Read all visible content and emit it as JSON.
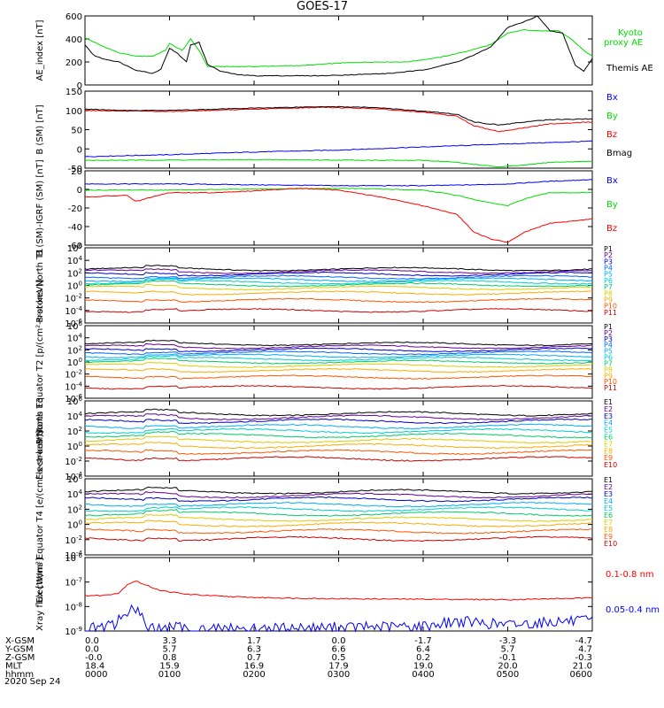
{
  "title": "GOES-17",
  "chart_data": [
    {
      "type": "line",
      "ylabel": "AE_index [nT]",
      "ylim": [
        0,
        600
      ],
      "yticks": [
        "600",
        "400",
        "200",
        "0"
      ],
      "series": [
        {
          "name": "Kyoto proxy AE",
          "color": "#00dd00",
          "x": [
            0,
            0.2,
            0.4,
            0.6,
            0.8,
            0.95,
            1.0,
            1.15,
            1.25,
            1.35,
            1.45,
            1.6,
            1.8,
            2.0,
            2.3,
            2.6,
            3.0,
            3.4,
            3.8,
            4.2,
            4.5,
            4.8,
            5.0,
            5.2,
            5.4,
            5.6,
            5.75,
            5.9,
            6.0
          ],
          "y": [
            410,
            340,
            280,
            250,
            250,
            300,
            360,
            300,
            400,
            300,
            160,
            160,
            160,
            160,
            165,
            170,
            190,
            200,
            200,
            240,
            290,
            350,
            450,
            480,
            470,
            470,
            400,
            300,
            250
          ]
        },
        {
          "name": "Themis AE",
          "color": "#000000",
          "x": [
            0,
            0.1,
            0.2,
            0.4,
            0.6,
            0.8,
            0.9,
            1.0,
            1.1,
            1.2,
            1.25,
            1.35,
            1.45,
            1.6,
            1.8,
            2.0,
            2.4,
            2.8,
            3.2,
            3.6,
            4.0,
            4.4,
            4.6,
            4.8,
            5.0,
            5.2,
            5.35,
            5.5,
            5.65,
            5.8,
            5.9,
            6.0
          ],
          "y": [
            350,
            260,
            230,
            200,
            130,
            100,
            140,
            320,
            270,
            200,
            350,
            370,
            180,
            120,
            90,
            80,
            80,
            80,
            90,
            100,
            130,
            200,
            260,
            330,
            500,
            550,
            600,
            470,
            450,
            170,
            120,
            230
          ]
        }
      ]
    },
    {
      "type": "line",
      "ylabel": "B (SM) [nT]",
      "ylim": [
        -50,
        150
      ],
      "yticks": [
        "150",
        "100",
        "50",
        "0",
        "-50"
      ],
      "series": [
        {
          "name": "Bx",
          "color": "#0000ff",
          "x": [
            0,
            1,
            2,
            3,
            4,
            5,
            6
          ],
          "y": [
            -20,
            -15,
            -8,
            -3,
            5,
            13,
            20
          ]
        },
        {
          "name": "By",
          "color": "#00dd00",
          "x": [
            0,
            1,
            2,
            3,
            4,
            4.3,
            4.6,
            4.9,
            5.2,
            5.5,
            6
          ],
          "y": [
            -30,
            -29,
            -28,
            -29,
            -30,
            -33,
            -40,
            -47,
            -42,
            -35,
            -32
          ]
        },
        {
          "name": "Bz",
          "color": "#ff0000",
          "x": [
            0,
            0.5,
            1,
            2,
            2.8,
            3.4,
            4,
            4.4,
            4.6,
            4.9,
            5.2,
            5.5,
            6
          ],
          "y": [
            100,
            98,
            97,
            103,
            108,
            105,
            95,
            85,
            60,
            45,
            55,
            65,
            70
          ]
        },
        {
          "name": "Bmag",
          "color": "#000000",
          "x": [
            0,
            0.5,
            1,
            2,
            2.8,
            3.4,
            4,
            4.4,
            4.6,
            4.9,
            5.2,
            5.5,
            6
          ],
          "y": [
            103,
            100,
            100,
            106,
            110,
            108,
            98,
            90,
            70,
            62,
            70,
            76,
            78
          ]
        }
      ]
    },
    {
      "type": "line",
      "ylabel": "B (SM)-IGRF (SM) [nT]",
      "ylim": [
        -65,
        20
      ],
      "yticks": [
        "20",
        "0",
        "-20",
        "-40",
        "-60"
      ],
      "series": [
        {
          "name": "Bx",
          "color": "#0000ff",
          "x": [
            0,
            1,
            2,
            3,
            4,
            4.6,
            5,
            5.5,
            6
          ],
          "y": [
            5,
            5,
            4,
            3,
            3,
            4,
            5,
            8,
            10
          ]
        },
        {
          "name": "By",
          "color": "#00dd00",
          "x": [
            0,
            1,
            2,
            3,
            4,
            4.4,
            4.7,
            5,
            5.2,
            5.5,
            6
          ],
          "y": [
            -2,
            -2,
            -1,
            0,
            -2,
            -8,
            -15,
            -20,
            -12,
            -5,
            -5
          ]
        },
        {
          "name": "Bz",
          "color": "#ff0000",
          "x": [
            0,
            0.5,
            0.6,
            1,
            1.5,
            2,
            2.5,
            3,
            3.5,
            4,
            4.4,
            4.6,
            4.8,
            5.0,
            5.2,
            5.5,
            6
          ],
          "y": [
            -10,
            -8,
            -15,
            -5,
            -5,
            -3,
            0,
            -2,
            -10,
            -20,
            -30,
            -50,
            -58,
            -62,
            -50,
            -40,
            -35
          ]
        }
      ]
    },
    {
      "type": "line",
      "ylabel": "Protons North T1",
      "ylog": true,
      "ylim": [
        -6,
        6
      ],
      "yticks": [
        "10^6",
        "10^4",
        "10^2",
        "10^0",
        "10^-2",
        "10^-4",
        "10^-6"
      ],
      "series": [
        {
          "name": "P1",
          "color": "#000000",
          "y": 2.6
        },
        {
          "name": "P2",
          "color": "#660099",
          "y": 2.2
        },
        {
          "name": "P3",
          "color": "#0000cc",
          "y": 1.8
        },
        {
          "name": "P4",
          "color": "#0066ff",
          "y": 1.3
        },
        {
          "name": "P5",
          "color": "#00aaff",
          "y": 0.9
        },
        {
          "name": "P6",
          "color": "#00cccc",
          "y": 0.5
        },
        {
          "name": "P7",
          "color": "#00cc66",
          "y": 0.1
        },
        {
          "name": "P8",
          "color": "#ddcc00",
          "y": -0.4
        },
        {
          "name": "P9",
          "color": "#ffaa00",
          "y": -1.2
        },
        {
          "name": "P10",
          "color": "#ff5500",
          "y": -2.4
        },
        {
          "name": "P11",
          "color": "#cc0000",
          "y": -4.0
        }
      ]
    },
    {
      "type": "line",
      "ylabel": "Protons Equator T2 [p/(cm²-s-sr-keV)]",
      "ylog": true,
      "ylim": [
        -6,
        6
      ],
      "yticks": [
        "10^6",
        "10^4",
        "10^2",
        "10^0",
        "10^-2",
        "10^-4",
        "10^-6"
      ],
      "series": [
        {
          "name": "P1",
          "color": "#000000",
          "y": 3.0
        },
        {
          "name": "P2",
          "color": "#660099",
          "y": 2.5
        },
        {
          "name": "P3",
          "color": "#0000cc",
          "y": 2.0
        },
        {
          "name": "P4",
          "color": "#0066ff",
          "y": 1.5
        },
        {
          "name": "P5",
          "color": "#00aaff",
          "y": 1.0
        },
        {
          "name": "P6",
          "color": "#00cccc",
          "y": 0.5
        },
        {
          "name": "P7",
          "color": "#00cc66",
          "y": 0.0
        },
        {
          "name": "P8",
          "color": "#ddcc00",
          "y": -0.6
        },
        {
          "name": "P9",
          "color": "#ffaa00",
          "y": -1.4
        },
        {
          "name": "P10",
          "color": "#ff5500",
          "y": -2.5
        },
        {
          "name": "P11",
          "color": "#cc0000",
          "y": -4.2
        }
      ]
    },
    {
      "type": "line",
      "ylabel": "Electrons North T3",
      "ylog": true,
      "ylim": [
        -4,
        6
      ],
      "yticks": [
        "10^6",
        "10^4",
        "10^2",
        "10^0",
        "10^-2",
        "10^-4"
      ],
      "series": [
        {
          "name": "E1",
          "color": "#000000",
          "y": 4.3
        },
        {
          "name": "E2",
          "color": "#660099",
          "y": 3.8
        },
        {
          "name": "E3",
          "color": "#0000cc",
          "y": 3.3
        },
        {
          "name": "E4",
          "color": "#00aaff",
          "y": 2.6
        },
        {
          "name": "E5",
          "color": "#00cccc",
          "y": 2.0
        },
        {
          "name": "E6",
          "color": "#00cc66",
          "y": 1.4
        },
        {
          "name": "E7",
          "color": "#ddcc00",
          "y": 0.7
        },
        {
          "name": "E8",
          "color": "#ffaa00",
          "y": 0.0
        },
        {
          "name": "E9",
          "color": "#ff5500",
          "y": -0.8
        },
        {
          "name": "E10",
          "color": "#cc0000",
          "y": -1.7
        }
      ]
    },
    {
      "type": "line",
      "ylabel": "Electrons Equator T4 [e/(cm²-s-sr-keV)]",
      "ylog": true,
      "ylim": [
        -4,
        6
      ],
      "yticks": [
        "10^6",
        "10^4",
        "10^2",
        "10^0",
        "10^-2",
        "10^-4"
      ],
      "series": [
        {
          "name": "E1",
          "color": "#000000",
          "y": 4.3
        },
        {
          "name": "E2",
          "color": "#660099",
          "y": 3.8
        },
        {
          "name": "E3",
          "color": "#0000cc",
          "y": 3.3
        },
        {
          "name": "E4",
          "color": "#00aaff",
          "y": 2.6
        },
        {
          "name": "E5",
          "color": "#00cccc",
          "y": 2.0
        },
        {
          "name": "E6",
          "color": "#00cc66",
          "y": 1.4
        },
        {
          "name": "E7",
          "color": "#ddcc00",
          "y": 0.7
        },
        {
          "name": "E8",
          "color": "#ffaa00",
          "y": 0.0
        },
        {
          "name": "E9",
          "color": "#ff5500",
          "y": -0.9
        },
        {
          "name": "E10",
          "color": "#cc0000",
          "y": -1.9
        }
      ]
    },
    {
      "type": "line",
      "ylabel": "Xray flux [W/m²]",
      "ylog": true,
      "ylim": [
        -9,
        -6
      ],
      "yticks": [
        "10^-6",
        "10^-7",
        "10^-8",
        "10^-9"
      ],
      "series": [
        {
          "name": "0.1-0.8 nm",
          "color": "#ff0000",
          "x": [
            0,
            0.2,
            0.4,
            0.5,
            0.6,
            0.7,
            0.9,
            1.2,
            1.6,
            2.0,
            2.5,
            3.0,
            4.0,
            5.0,
            6.0
          ],
          "y": [
            -7.55,
            -7.55,
            -7.45,
            -7.1,
            -6.95,
            -7.1,
            -7.35,
            -7.5,
            -7.58,
            -7.63,
            -7.66,
            -7.68,
            -7.7,
            -7.72,
            -7.65
          ]
        },
        {
          "name": "0.05-0.4 nm",
          "color": "#0000ff",
          "x": [
            0,
            0.2,
            0.35,
            0.45,
            0.55,
            0.65,
            0.75,
            0.85,
            1.0,
            1.5,
            2.0,
            3.0,
            4.0,
            4.4,
            5.0,
            5.6,
            6.0
          ],
          "y": [
            -8.9,
            -8.85,
            -8.75,
            -8.3,
            -8.15,
            -8.3,
            -8.8,
            -8.95,
            -8.85,
            -8.9,
            -8.9,
            -8.85,
            -8.8,
            -8.6,
            -8.75,
            -8.6,
            -8.6
          ]
        }
      ]
    }
  ],
  "orbit_table": {
    "rows": [
      {
        "label": "X-GSM",
        "values": [
          "0.0",
          "3.3",
          "1.7",
          "0.0",
          "-1.7",
          "-3.3",
          "-4.7"
        ]
      },
      {
        "label": "Y-GSM",
        "values": [
          "0.0",
          "5.7",
          "6.3",
          "6.6",
          "6.4",
          "5.7",
          "4.7"
        ]
      },
      {
        "label": "Z-GSM",
        "values": [
          "-0.0",
          "0.8",
          "0.7",
          "0.5",
          "0.2",
          "-0.1",
          "-0.3"
        ]
      },
      {
        "label": "MLT",
        "values": [
          "18.4",
          "15.9",
          "16.9",
          "17.9",
          "19.0",
          "20.0",
          "21.0"
        ]
      },
      {
        "label": "hhmm",
        "values": [
          "0000",
          "0100",
          "0200",
          "0300",
          "0400",
          "0500",
          "0600"
        ]
      }
    ],
    "date": "2020 Sep 24"
  }
}
